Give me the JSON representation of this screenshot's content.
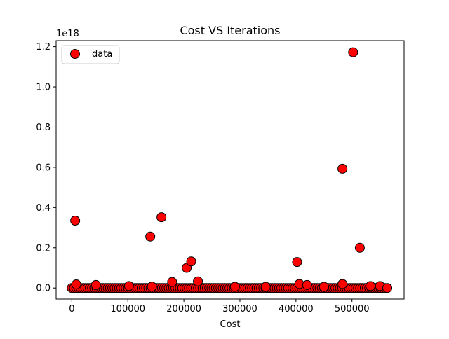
{
  "chart_data": {
    "type": "scatter",
    "title": "Cost VS Iterations",
    "xlabel": "Cost",
    "ylabel": "",
    "xlim": [
      -28000,
      593000
    ],
    "ylim": [
      -0.055,
      1.23
    ],
    "y_offset_label": "1e18",
    "x_ticks": [
      0,
      100000,
      200000,
      300000,
      400000,
      500000
    ],
    "x_tick_labels": [
      "0",
      "100000",
      "200000",
      "300000",
      "400000",
      "500000"
    ],
    "y_ticks": [
      0.0,
      0.2,
      0.4,
      0.6,
      0.8,
      1.0,
      1.2
    ],
    "y_tick_labels": [
      "0.0",
      "0.2",
      "0.4",
      "0.6",
      "0.8",
      "1.0",
      "1.2"
    ],
    "grid": false,
    "legend": {
      "position": "top-left",
      "entries": [
        "data"
      ]
    },
    "marker": {
      "fill": "#ff0000",
      "edge": "#000000"
    },
    "baseline_band": {
      "x_start": 0,
      "x_end": 563000,
      "y": 0.0
    },
    "series": [
      {
        "name": "data",
        "points": [
          {
            "x": 6000,
            "y": 0.335
          },
          {
            "x": 8000,
            "y": 0.018
          },
          {
            "x": 43000,
            "y": 0.015
          },
          {
            "x": 102000,
            "y": 0.01
          },
          {
            "x": 140000,
            "y": 0.256
          },
          {
            "x": 143000,
            "y": 0.007
          },
          {
            "x": 160000,
            "y": 0.352
          },
          {
            "x": 179000,
            "y": 0.03
          },
          {
            "x": 205000,
            "y": 0.1
          },
          {
            "x": 213000,
            "y": 0.132
          },
          {
            "x": 225000,
            "y": 0.033
          },
          {
            "x": 291000,
            "y": 0.006
          },
          {
            "x": 346000,
            "y": 0.006
          },
          {
            "x": 402000,
            "y": 0.129
          },
          {
            "x": 406000,
            "y": 0.02
          },
          {
            "x": 420000,
            "y": 0.015
          },
          {
            "x": 450000,
            "y": 0.006
          },
          {
            "x": 483000,
            "y": 0.593
          },
          {
            "x": 483000,
            "y": 0.02
          },
          {
            "x": 502000,
            "y": 1.172
          },
          {
            "x": 514000,
            "y": 0.2
          },
          {
            "x": 533000,
            "y": 0.01
          },
          {
            "x": 550000,
            "y": 0.01
          },
          {
            "x": 563000,
            "y": 0.0
          }
        ]
      }
    ]
  }
}
